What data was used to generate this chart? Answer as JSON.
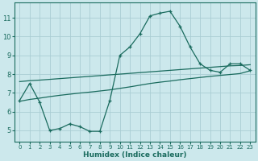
{
  "xlabel": "Humidex (Indice chaleur)",
  "bg_color": "#cce8ec",
  "line_color": "#1a6b5e",
  "grid_color": "#aacdd4",
  "xlim": [
    -0.5,
    23.5
  ],
  "ylim": [
    4.4,
    11.8
  ],
  "xticks": [
    0,
    1,
    2,
    3,
    4,
    5,
    6,
    7,
    8,
    9,
    10,
    11,
    12,
    13,
    14,
    15,
    16,
    17,
    18,
    19,
    20,
    21,
    22,
    23
  ],
  "yticks": [
    5,
    6,
    7,
    8,
    9,
    10,
    11
  ],
  "main_x": [
    0,
    1,
    2,
    3,
    4,
    5,
    6,
    7,
    8,
    9,
    10,
    11,
    12,
    13,
    14,
    15,
    16,
    17,
    18,
    19,
    20,
    21,
    22,
    23
  ],
  "main_y": [
    6.6,
    7.5,
    6.5,
    5.0,
    5.1,
    5.35,
    5.2,
    4.95,
    4.95,
    6.6,
    9.0,
    9.45,
    10.15,
    11.1,
    11.25,
    11.35,
    10.55,
    9.45,
    8.55,
    8.2,
    8.1,
    8.55,
    8.55,
    8.2
  ],
  "upper_x": [
    0,
    1,
    2,
    3,
    4,
    5,
    6,
    7,
    8,
    9,
    10,
    11,
    12,
    13,
    14,
    15,
    16,
    17,
    18,
    19,
    20,
    21,
    22,
    23
  ],
  "upper_y": [
    7.6,
    7.65,
    7.68,
    7.72,
    7.76,
    7.8,
    7.84,
    7.88,
    7.92,
    7.96,
    8.0,
    8.04,
    8.08,
    8.12,
    8.16,
    8.2,
    8.24,
    8.28,
    8.32,
    8.36,
    8.4,
    8.44,
    8.46,
    8.5
  ],
  "lower_x": [
    0,
    1,
    2,
    3,
    4,
    5,
    6,
    7,
    8,
    9,
    10,
    11,
    12,
    13,
    14,
    15,
    16,
    17,
    18,
    19,
    20,
    21,
    22,
    23
  ],
  "lower_y": [
    6.55,
    6.65,
    6.72,
    6.8,
    6.87,
    6.93,
    6.99,
    7.04,
    7.1,
    7.16,
    7.24,
    7.32,
    7.41,
    7.5,
    7.57,
    7.63,
    7.7,
    7.76,
    7.82,
    7.88,
    7.93,
    7.98,
    8.03,
    8.18
  ]
}
